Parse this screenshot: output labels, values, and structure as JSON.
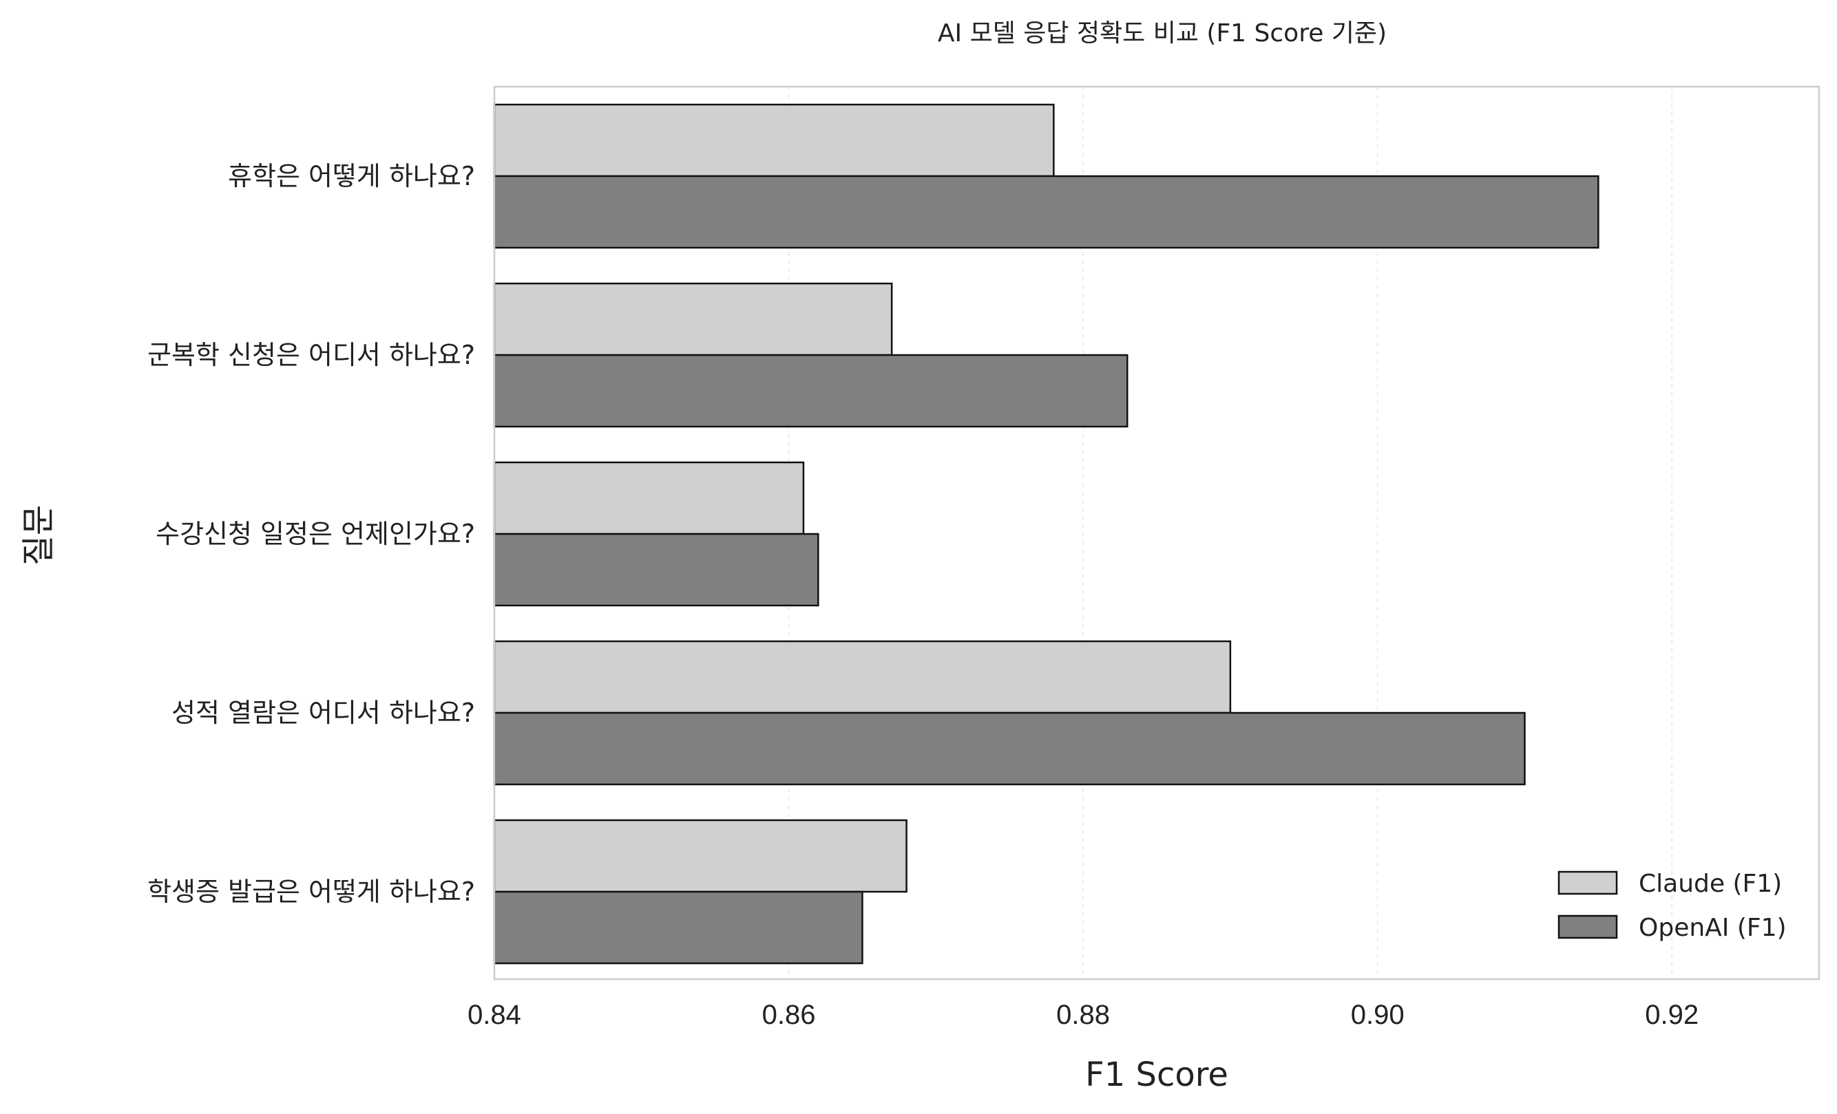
{
  "chart_data": {
    "type": "bar",
    "orientation": "horizontal",
    "title": "AI 모델 응답 정확도 비교 (F1 Score 기준)",
    "xlabel": "F1 Score",
    "ylabel": "질문",
    "xlim": [
      0.84,
      0.93
    ],
    "xticks": [
      0.84,
      0.86,
      0.88,
      0.9,
      0.92
    ],
    "xtick_labels": [
      "0.84",
      "0.86",
      "0.88",
      "0.90",
      "0.92"
    ],
    "grid": "x-dashed",
    "legend_position": "bottom-right",
    "categories": [
      "휴학은 어떻게 하나요?",
      "군복학 신청은 어디서 하나요?",
      "수강신청 일정은 언제인가요?",
      "성적 열람은 어디서 하나요?",
      "학생증 발급은 어떻게 하나요?"
    ],
    "series": [
      {
        "name": "Claude (F1)",
        "color": "#d0d0d0",
        "values": [
          0.878,
          0.867,
          0.861,
          0.89,
          0.868
        ]
      },
      {
        "name": "OpenAI (F1)",
        "color": "#808080",
        "values": [
          0.915,
          0.883,
          0.862,
          0.91,
          0.865
        ]
      }
    ]
  }
}
